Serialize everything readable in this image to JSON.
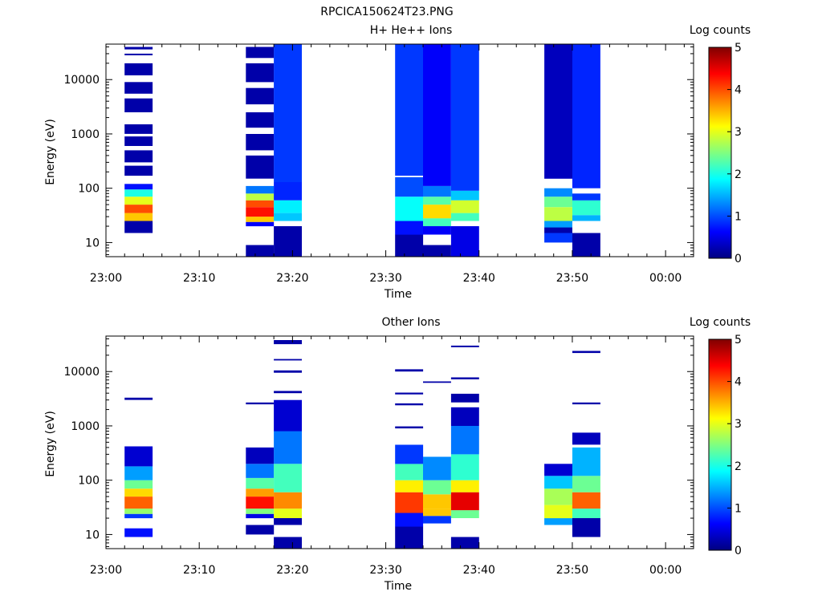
{
  "figure_title": "RPCICA150624T23.PNG",
  "colormap": [
    "#000080",
    "#0000ff",
    "#0080ff",
    "#00ffff",
    "#80ff80",
    "#ffff00",
    "#ff8000",
    "#ff0000",
    "#800000"
  ],
  "chart_data": [
    {
      "type": "heatmap",
      "title": "H+ He++ Ions",
      "xlabel": "Time",
      "ylabel": "Energy (eV)",
      "colorbar_label": "Log counts",
      "colorbar_ticks": [
        "0",
        "1",
        "2",
        "3",
        "4",
        "5"
      ],
      "xlim": [
        "23:00",
        "00:03"
      ],
      "x_ticks": [
        "23:00",
        "23:10",
        "23:20",
        "23:30",
        "23:40",
        "23:50",
        "00:00"
      ],
      "yscale": "log",
      "ylim": [
        5.5,
        45000
      ],
      "y_ticks": [
        "10",
        "100",
        "1000",
        "10000"
      ],
      "zlim": [
        0,
        5
      ],
      "columns": [
        {
          "t_start": "23:02",
          "t_end": "23:05",
          "bins": [
            {
              "e_low": 15,
              "e_high": 25,
              "value": 0.2
            },
            {
              "e_low": 25,
              "e_high": 35,
              "value": 3.4
            },
            {
              "e_low": 35,
              "e_high": 50,
              "value": 4.0
            },
            {
              "e_low": 50,
              "e_high": 70,
              "value": 3.0
            },
            {
              "e_low": 70,
              "e_high": 95,
              "value": 2.0
            },
            {
              "e_low": 95,
              "e_high": 120,
              "value": 0.7
            },
            {
              "e_low": 170,
              "e_high": 260,
              "value": 0.2
            },
            {
              "e_low": 300,
              "e_high": 500,
              "value": 0.2
            },
            {
              "e_low": 600,
              "e_high": 900,
              "value": 0.2
            },
            {
              "e_low": 1000,
              "e_high": 1500,
              "value": 0.2
            },
            {
              "e_low": 2500,
              "e_high": 4500,
              "value": 0.2
            },
            {
              "e_low": 5500,
              "e_high": 9000,
              "value": 0.2
            },
            {
              "e_low": 12000,
              "e_high": 20000,
              "value": 0.2
            },
            {
              "e_low": 28000,
              "e_high": 30000,
              "value": 0.2
            },
            {
              "e_low": 36000,
              "e_high": 40000,
              "value": 0.2
            }
          ]
        },
        {
          "t_start": "23:15",
          "t_end": "23:18",
          "bins": [
            {
              "e_low": 5.5,
              "e_high": 9,
              "value": 0.2
            },
            {
              "e_low": 20,
              "e_high": 24,
              "value": 0.6
            },
            {
              "e_low": 24,
              "e_high": 30,
              "value": 3.4
            },
            {
              "e_low": 30,
              "e_high": 45,
              "value": 4.3
            },
            {
              "e_low": 45,
              "e_high": 60,
              "value": 4.0
            },
            {
              "e_low": 60,
              "e_high": 80,
              "value": 2.8
            },
            {
              "e_low": 80,
              "e_high": 110,
              "value": 1.2
            },
            {
              "e_low": 150,
              "e_high": 400,
              "value": 0.2
            },
            {
              "e_low": 500,
              "e_high": 1000,
              "value": 0.2
            },
            {
              "e_low": 1300,
              "e_high": 2500,
              "value": 0.2
            },
            {
              "e_low": 3500,
              "e_high": 7000,
              "value": 0.2
            },
            {
              "e_low": 9000,
              "e_high": 20000,
              "value": 0.2
            },
            {
              "e_low": 25000,
              "e_high": 40000,
              "value": 0.2
            }
          ]
        },
        {
          "t_start": "23:18",
          "t_end": "23:21",
          "bins": [
            {
              "e_low": 5.5,
              "e_high": 20,
              "value": 0.2
            },
            {
              "e_low": 25,
              "e_high": 35,
              "value": 1.6
            },
            {
              "e_low": 35,
              "e_high": 60,
              "value": 1.8
            },
            {
              "e_low": 60,
              "e_high": 130,
              "value": 0.8
            },
            {
              "e_low": 130,
              "e_high": 45000,
              "value": 0.9
            }
          ]
        },
        {
          "t_start": "23:31",
          "t_end": "23:34",
          "bins": [
            {
              "e_low": 5.5,
              "e_high": 14,
              "value": 0.2
            },
            {
              "e_low": 14,
              "e_high": 25,
              "value": 0.7
            },
            {
              "e_low": 25,
              "e_high": 70,
              "value": 1.9
            },
            {
              "e_low": 70,
              "e_high": 160,
              "value": 1.0
            },
            {
              "e_low": 170,
              "e_high": 45000,
              "value": 0.9
            }
          ]
        },
        {
          "t_start": "23:34",
          "t_end": "23:37",
          "bins": [
            {
              "e_low": 5.5,
              "e_high": 9,
              "value": 0.2
            },
            {
              "e_low": 14,
              "e_high": 20,
              "value": 0.6
            },
            {
              "e_low": 20,
              "e_high": 28,
              "value": 2.2
            },
            {
              "e_low": 28,
              "e_high": 50,
              "value": 3.3
            },
            {
              "e_low": 50,
              "e_high": 70,
              "value": 2.3
            },
            {
              "e_low": 70,
              "e_high": 110,
              "value": 1.2
            },
            {
              "e_low": 110,
              "e_high": 45000,
              "value": 0.6
            }
          ]
        },
        {
          "t_start": "23:37",
          "t_end": "23:40",
          "bins": [
            {
              "e_low": 5.5,
              "e_high": 20,
              "value": 0.5
            },
            {
              "e_low": 25,
              "e_high": 35,
              "value": 2.2
            },
            {
              "e_low": 35,
              "e_high": 60,
              "value": 2.9
            },
            {
              "e_low": 60,
              "e_high": 90,
              "value": 1.6
            },
            {
              "e_low": 90,
              "e_high": 45000,
              "value": 0.9
            }
          ]
        },
        {
          "t_start": "23:47",
          "t_end": "23:50",
          "bins": [
            {
              "e_low": 10,
              "e_high": 15,
              "value": 0.9
            },
            {
              "e_low": 15,
              "e_high": 19,
              "value": 0.2
            },
            {
              "e_low": 19,
              "e_high": 25,
              "value": 1.4
            },
            {
              "e_low": 25,
              "e_high": 45,
              "value": 2.8
            },
            {
              "e_low": 45,
              "e_high": 70,
              "value": 2.4
            },
            {
              "e_low": 70,
              "e_high": 100,
              "value": 1.3
            },
            {
              "e_low": 150,
              "e_high": 45000,
              "value": 0.3
            }
          ]
        },
        {
          "t_start": "23:50",
          "t_end": "23:53",
          "bins": [
            {
              "e_low": 5.5,
              "e_high": 15,
              "value": 0.2
            },
            {
              "e_low": 25,
              "e_high": 32,
              "value": 1.5
            },
            {
              "e_low": 32,
              "e_high": 60,
              "value": 2.1
            },
            {
              "e_low": 60,
              "e_high": 80,
              "value": 0.9
            },
            {
              "e_low": 100,
              "e_high": 45000,
              "value": 0.8
            }
          ]
        }
      ]
    },
    {
      "type": "heatmap",
      "title": "Other Ions",
      "xlabel": "Time",
      "ylabel": "Energy (eV)",
      "colorbar_label": "Log counts",
      "colorbar_ticks": [
        "0",
        "1",
        "2",
        "3",
        "4",
        "5"
      ],
      "xlim": [
        "23:00",
        "00:03"
      ],
      "x_ticks": [
        "23:00",
        "23:10",
        "23:20",
        "23:30",
        "23:40",
        "23:50",
        "00:00"
      ],
      "yscale": "log",
      "ylim": [
        5.5,
        45000
      ],
      "y_ticks": [
        "10",
        "100",
        "1000",
        "10000"
      ],
      "zlim": [
        0,
        5
      ],
      "columns": [
        {
          "t_start": "23:02",
          "t_end": "23:05",
          "bins": [
            {
              "e_low": 9,
              "e_high": 13,
              "value": 0.7
            },
            {
              "e_low": 20,
              "e_high": 24,
              "value": 0.9
            },
            {
              "e_low": 24,
              "e_high": 30,
              "value": 2.6
            },
            {
              "e_low": 30,
              "e_high": 50,
              "value": 3.9
            },
            {
              "e_low": 50,
              "e_high": 70,
              "value": 3.3
            },
            {
              "e_low": 70,
              "e_high": 100,
              "value": 2.4
            },
            {
              "e_low": 100,
              "e_high": 180,
              "value": 1.4
            },
            {
              "e_low": 180,
              "e_high": 420,
              "value": 0.4
            },
            {
              "e_low": 3000,
              "e_high": 3300,
              "value": 0.2
            }
          ]
        },
        {
          "t_start": "23:15",
          "t_end": "23:18",
          "bins": [
            {
              "e_low": 10,
              "e_high": 15,
              "value": 0.2
            },
            {
              "e_low": 20,
              "e_high": 24,
              "value": 0.5
            },
            {
              "e_low": 24,
              "e_high": 30,
              "value": 2.5
            },
            {
              "e_low": 30,
              "e_high": 50,
              "value": 4.3
            },
            {
              "e_low": 50,
              "e_high": 70,
              "value": 3.6
            },
            {
              "e_low": 70,
              "e_high": 110,
              "value": 2.3
            },
            {
              "e_low": 110,
              "e_high": 200,
              "value": 1.2
            },
            {
              "e_low": 200,
              "e_high": 400,
              "value": 0.3
            },
            {
              "e_low": 2500,
              "e_high": 2700,
              "value": 0.2
            }
          ]
        },
        {
          "t_start": "23:18",
          "t_end": "23:21",
          "bins": [
            {
              "e_low": 5.5,
              "e_high": 9,
              "value": 0.2
            },
            {
              "e_low": 15,
              "e_high": 20,
              "value": 0.2
            },
            {
              "e_low": 20,
              "e_high": 30,
              "value": 3.0
            },
            {
              "e_low": 30,
              "e_high": 60,
              "value": 3.7
            },
            {
              "e_low": 60,
              "e_high": 200,
              "value": 2.2
            },
            {
              "e_low": 200,
              "e_high": 800,
              "value": 1.2
            },
            {
              "e_low": 800,
              "e_high": 3000,
              "value": 0.4
            },
            {
              "e_low": 4000,
              "e_high": 4400,
              "value": 0.2
            },
            {
              "e_low": 9500,
              "e_high": 10500,
              "value": 0.2
            },
            {
              "e_low": 16000,
              "e_high": 17000,
              "value": 0.2
            },
            {
              "e_low": 32000,
              "e_high": 38000,
              "value": 0.2
            }
          ]
        },
        {
          "t_start": "23:31",
          "t_end": "23:34",
          "bins": [
            {
              "e_low": 5.5,
              "e_high": 14,
              "value": 0.2
            },
            {
              "e_low": 14,
              "e_high": 25,
              "value": 0.7
            },
            {
              "e_low": 25,
              "e_high": 60,
              "value": 4.1
            },
            {
              "e_low": 60,
              "e_high": 100,
              "value": 3.2
            },
            {
              "e_low": 100,
              "e_high": 200,
              "value": 2.2
            },
            {
              "e_low": 200,
              "e_high": 450,
              "value": 0.9
            },
            {
              "e_low": 900,
              "e_high": 980,
              "value": 0.2
            },
            {
              "e_low": 2400,
              "e_high": 2600,
              "value": 0.2
            },
            {
              "e_low": 3800,
              "e_high": 4100,
              "value": 0.2
            },
            {
              "e_low": 10000,
              "e_high": 11000,
              "value": 0.2
            }
          ]
        },
        {
          "t_start": "23:34",
          "t_end": "23:37",
          "bins": [
            {
              "e_low": 16,
              "e_high": 22,
              "value": 0.9
            },
            {
              "e_low": 22,
              "e_high": 30,
              "value": 3.4
            },
            {
              "e_low": 30,
              "e_high": 55,
              "value": 3.4
            },
            {
              "e_low": 55,
              "e_high": 100,
              "value": 2.4
            },
            {
              "e_low": 100,
              "e_high": 270,
              "value": 1.3
            },
            {
              "e_low": 6200,
              "e_high": 6600,
              "value": 0.2
            }
          ]
        },
        {
          "t_start": "23:37",
          "t_end": "23:40",
          "bins": [
            {
              "e_low": 5.5,
              "e_high": 9,
              "value": 0.2
            },
            {
              "e_low": 20,
              "e_high": 28,
              "value": 2.4
            },
            {
              "e_low": 28,
              "e_high": 60,
              "value": 4.5
            },
            {
              "e_low": 60,
              "e_high": 100,
              "value": 3.2
            },
            {
              "e_low": 100,
              "e_high": 300,
              "value": 2.1
            },
            {
              "e_low": 300,
              "e_high": 1000,
              "value": 1.2
            },
            {
              "e_low": 1000,
              "e_high": 2200,
              "value": 0.3
            },
            {
              "e_low": 2700,
              "e_high": 3900,
              "value": 0.2
            },
            {
              "e_low": 7200,
              "e_high": 7800,
              "value": 0.2
            },
            {
              "e_low": 28000,
              "e_high": 30000,
              "value": 0.2
            }
          ]
        },
        {
          "t_start": "23:47",
          "t_end": "23:50",
          "bins": [
            {
              "e_low": 15,
              "e_high": 20,
              "value": 1.4
            },
            {
              "e_low": 20,
              "e_high": 35,
              "value": 3.0
            },
            {
              "e_low": 35,
              "e_high": 70,
              "value": 2.7
            },
            {
              "e_low": 70,
              "e_high": 120,
              "value": 1.6
            },
            {
              "e_low": 120,
              "e_high": 200,
              "value": 0.4
            }
          ]
        },
        {
          "t_start": "23:50",
          "t_end": "23:53",
          "bins": [
            {
              "e_low": 9,
              "e_high": 20,
              "value": 0.2
            },
            {
              "e_low": 20,
              "e_high": 30,
              "value": 2.2
            },
            {
              "e_low": 30,
              "e_high": 60,
              "value": 3.9
            },
            {
              "e_low": 60,
              "e_high": 120,
              "value": 2.4
            },
            {
              "e_low": 120,
              "e_high": 400,
              "value": 1.5
            },
            {
              "e_low": 450,
              "e_high": 750,
              "value": 0.3
            },
            {
              "e_low": 2500,
              "e_high": 2700,
              "value": 0.2
            },
            {
              "e_low": 22000,
              "e_high": 24000,
              "value": 0.2
            }
          ]
        }
      ]
    }
  ]
}
